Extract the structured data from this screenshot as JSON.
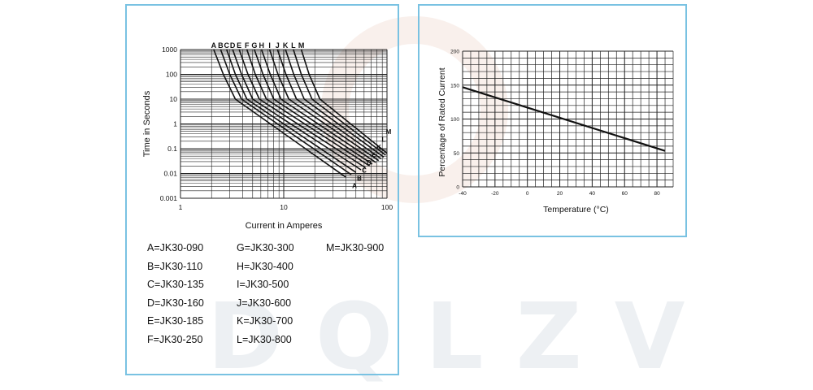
{
  "watermark": "DQLZV",
  "chart_data": [
    {
      "type": "line",
      "xscale": "log",
      "yscale": "log",
      "xlabel": "Current in Amperes",
      "ylabel": "Time in Seconds",
      "xlim": [
        1,
        100
      ],
      "ylim": [
        0.001,
        1000
      ],
      "xticks": [
        "1",
        "10",
        "100"
      ],
      "yticks": [
        "1000",
        "100",
        "10",
        "1",
        "0.1",
        "0.01",
        "0.001"
      ],
      "grid": true,
      "top_labels": [
        "A",
        "B",
        "C",
        "D",
        "E",
        "F",
        "G",
        "H",
        "I",
        "J",
        "K",
        "L",
        "M"
      ],
      "right_labels": [
        "M",
        "L",
        "K",
        "E",
        "D",
        "C",
        "B",
        "A"
      ],
      "series": [
        {
          "name": "A",
          "x": [
            2.1,
            2.6,
            3.4,
            40
          ],
          "y": [
            1000,
            100,
            10,
            0.007
          ]
        },
        {
          "name": "B",
          "x": [
            2.45,
            3.0,
            3.9,
            45
          ],
          "y": [
            1000,
            100,
            10,
            0.009
          ]
        },
        {
          "name": "C",
          "x": [
            2.8,
            3.4,
            4.4,
            50
          ],
          "y": [
            1000,
            100,
            10,
            0.011
          ]
        },
        {
          "name": "D",
          "x": [
            3.2,
            3.9,
            5.0,
            56
          ],
          "y": [
            1000,
            100,
            10,
            0.014
          ]
        },
        {
          "name": "E",
          "x": [
            3.7,
            4.5,
            5.8,
            62
          ],
          "y": [
            1000,
            100,
            10,
            0.017
          ]
        },
        {
          "name": "F",
          "x": [
            4.4,
            5.3,
            6.8,
            68
          ],
          "y": [
            1000,
            100,
            10,
            0.02
          ]
        },
        {
          "name": "G",
          "x": [
            5.2,
            6.3,
            8.0,
            72
          ],
          "y": [
            1000,
            100,
            10,
            0.024
          ]
        },
        {
          "name": "H",
          "x": [
            6.1,
            7.4,
            9.4,
            78
          ],
          "y": [
            1000,
            100,
            10,
            0.028
          ]
        },
        {
          "name": "I",
          "x": [
            7.3,
            8.8,
            11.2,
            83
          ],
          "y": [
            1000,
            100,
            10,
            0.033
          ]
        },
        {
          "name": "J",
          "x": [
            8.7,
            10.5,
            13.3,
            88
          ],
          "y": [
            1000,
            100,
            10,
            0.039
          ]
        },
        {
          "name": "K",
          "x": [
            10.4,
            12.5,
            15.8,
            93
          ],
          "y": [
            1000,
            100,
            10,
            0.046
          ]
        },
        {
          "name": "L",
          "x": [
            12.4,
            14.8,
            18.8,
            97
          ],
          "y": [
            1000,
            100,
            10,
            0.055
          ]
        },
        {
          "name": "M",
          "x": [
            14.8,
            17.6,
            22.4,
            100
          ],
          "y": [
            1000,
            100,
            10,
            0.066
          ]
        }
      ],
      "legend": [
        [
          "A=JK30-090",
          "G=JK30-300",
          "M=JK30-900"
        ],
        [
          "B=JK30-110",
          "H=JK30-400"
        ],
        [
          "C=JK30-135",
          "I=JK30-500"
        ],
        [
          "D=JK30-160",
          "J=JK30-600"
        ],
        [
          "E=JK30-185",
          "K=JK30-700"
        ],
        [
          "F=JK30-250",
          "L=JK30-800"
        ]
      ]
    },
    {
      "type": "line",
      "xlabel": "Temperature (°C)",
      "ylabel": "Percentage of Rated Current",
      "xlim": [
        -40,
        90
      ],
      "ylim": [
        0,
        200
      ],
      "xticks": [
        "-40",
        "-20",
        "0",
        "20",
        "40",
        "60",
        "80"
      ],
      "yticks": [
        "200",
        "150",
        "100",
        "50",
        "0"
      ],
      "grid": true,
      "series": [
        {
          "x": [
            -40,
            85
          ],
          "y": [
            147,
            53
          ]
        }
      ]
    }
  ],
  "colors": {
    "panel_border": "#79c2e2",
    "line": "#111111",
    "grid": "#222222"
  }
}
